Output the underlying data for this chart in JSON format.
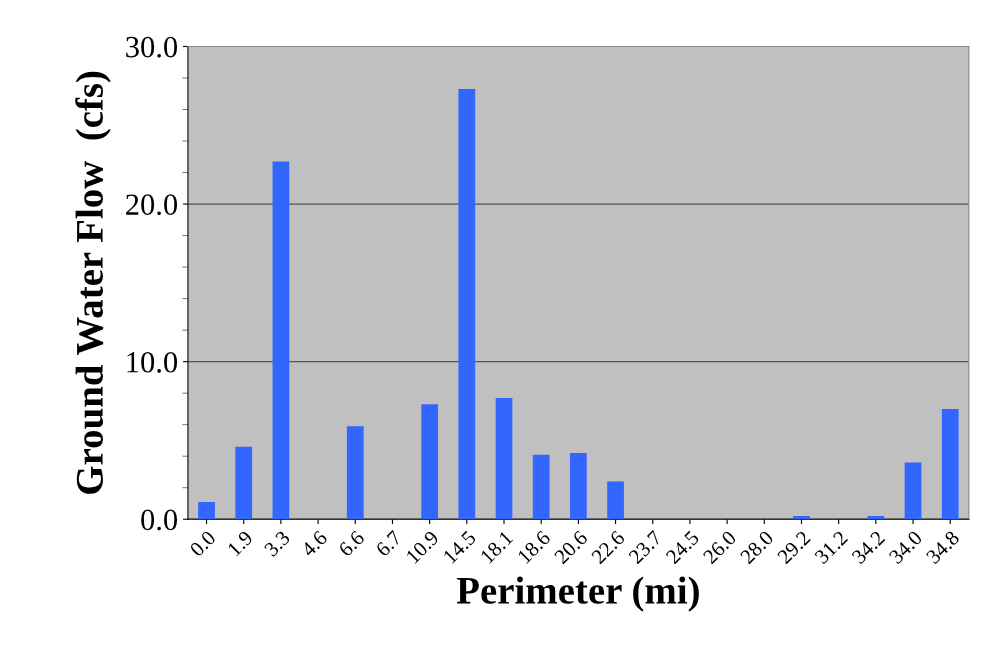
{
  "chart_data": {
    "type": "bar",
    "xlabel": "Perimeter (mi)",
    "ylabel": "Ground Water Flow  (cfs)",
    "categories": [
      "0.0",
      "1.9",
      "3.3",
      "4.6",
      "6.6",
      "6.7",
      "10.9",
      "14.5",
      "18.1",
      "18.6",
      "20.6",
      "22.6",
      "23.7",
      "24.5",
      "26.0",
      "28.0",
      "29.2",
      "31.2",
      "34.2",
      "34.0",
      "34.8"
    ],
    "values": [
      1.1,
      4.6,
      22.7,
      0,
      5.9,
      0,
      7.3,
      27.3,
      7.7,
      4.1,
      4.2,
      2.4,
      0,
      0,
      0,
      0,
      0.2,
      0,
      0.2,
      3.6,
      7.0
    ],
    "color": "#3366ff",
    "ylim": [
      0,
      30
    ],
    "yticks": [
      {
        "value": 0,
        "label": "0.0"
      },
      {
        "value": 10,
        "label": "10.0"
      },
      {
        "value": 20,
        "label": "20.0"
      },
      {
        "value": 30,
        "label": "30.0"
      }
    ],
    "grid": "y"
  }
}
